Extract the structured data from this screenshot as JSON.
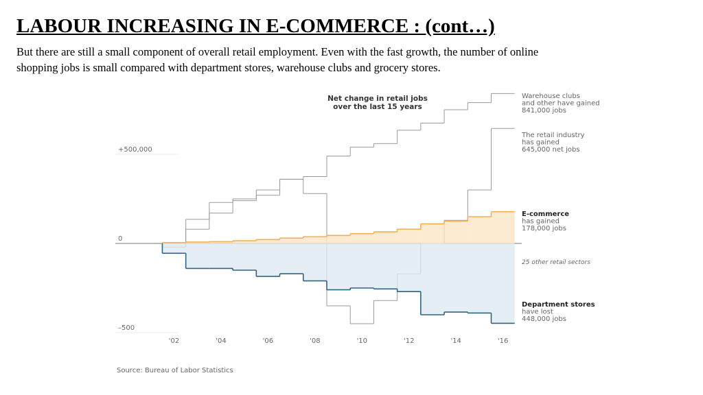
{
  "slide": {
    "title": "LABOUR INCREASING IN E-COMMERCE : (cont…)",
    "body": [
      "But there are still a small component of overall retail employment. Even with the fast growth, the number of online",
      "shopping jobs is small compared with department stores, warehouse clubs and grocery stores."
    ]
  },
  "chart_data": {
    "type": "step",
    "title": [
      "Net change in retail jobs",
      "over the last 15 years"
    ],
    "x": [
      2002,
      2003,
      2004,
      2005,
      2006,
      2007,
      2008,
      2009,
      2010,
      2011,
      2012,
      2013,
      2014,
      2015,
      2016
    ],
    "xlim": [
      1999.5,
      2016.8
    ],
    "xticks": [
      {
        "value": 2002,
        "label": "'02"
      },
      {
        "value": 2004,
        "label": "'04"
      },
      {
        "value": 2006,
        "label": "'06"
      },
      {
        "value": 2008,
        "label": "'08"
      },
      {
        "value": 2010,
        "label": "'10"
      },
      {
        "value": 2012,
        "label": "'12"
      },
      {
        "value": 2014,
        "label": "'14"
      },
      {
        "value": 2016,
        "label": "'16"
      }
    ],
    "ylim": [
      -560000,
      870000
    ],
    "yticks": [
      {
        "value": 500000,
        "label": "+500,000"
      },
      0,
      {
        "value": -500000,
        "label": "–500"
      }
    ],
    "series": [
      {
        "name": "Warehouse clubs",
        "color": "#999999",
        "values": [
          0,
          135000,
          230000,
          250000,
          270000,
          360000,
          375000,
          490000,
          540000,
          560000,
          635000,
          675000,
          750000,
          790000,
          841000
        ]
      },
      {
        "name": "The retail industry",
        "color": "#999999",
        "values": [
          -20000,
          80000,
          170000,
          240000,
          300000,
          360000,
          280000,
          -350000,
          -450000,
          -320000,
          -170000,
          0,
          130000,
          300000,
          645000
        ]
      },
      {
        "name": "E-commerce",
        "color": "#f0b255",
        "fill": "#fbe5c6",
        "values": [
          5000,
          8000,
          10000,
          15000,
          22000,
          30000,
          38000,
          45000,
          55000,
          65000,
          80000,
          110000,
          125000,
          150000,
          178000
        ]
      },
      {
        "name": "Department stores",
        "color": "#2f6480",
        "fill": "#dfe8f2",
        "values": [
          -55000,
          -140000,
          -140000,
          -150000,
          -185000,
          -170000,
          -210000,
          -260000,
          -250000,
          -255000,
          -270000,
          -400000,
          -385000,
          -390000,
          -448000
        ]
      }
    ],
    "annotations": [
      {
        "lines": [
          "Warehouse clubs",
          "and other have gained",
          "841,000 jobs"
        ],
        "bold": false
      },
      {
        "lines": [
          "The retail industry",
          "has gained",
          "645,000 net jobs"
        ],
        "bold": false
      },
      {
        "lines": [
          "E-commerce",
          "has gained",
          "178,000 jobs"
        ],
        "bold": true
      },
      {
        "lines": [
          "25 other retail sectors"
        ],
        "bold": false
      },
      {
        "lines": [
          "Department stores",
          "have lost",
          "448,000 jobs"
        ],
        "bold": true
      }
    ],
    "source": "Source: Bureau of Labor Statistics"
  }
}
